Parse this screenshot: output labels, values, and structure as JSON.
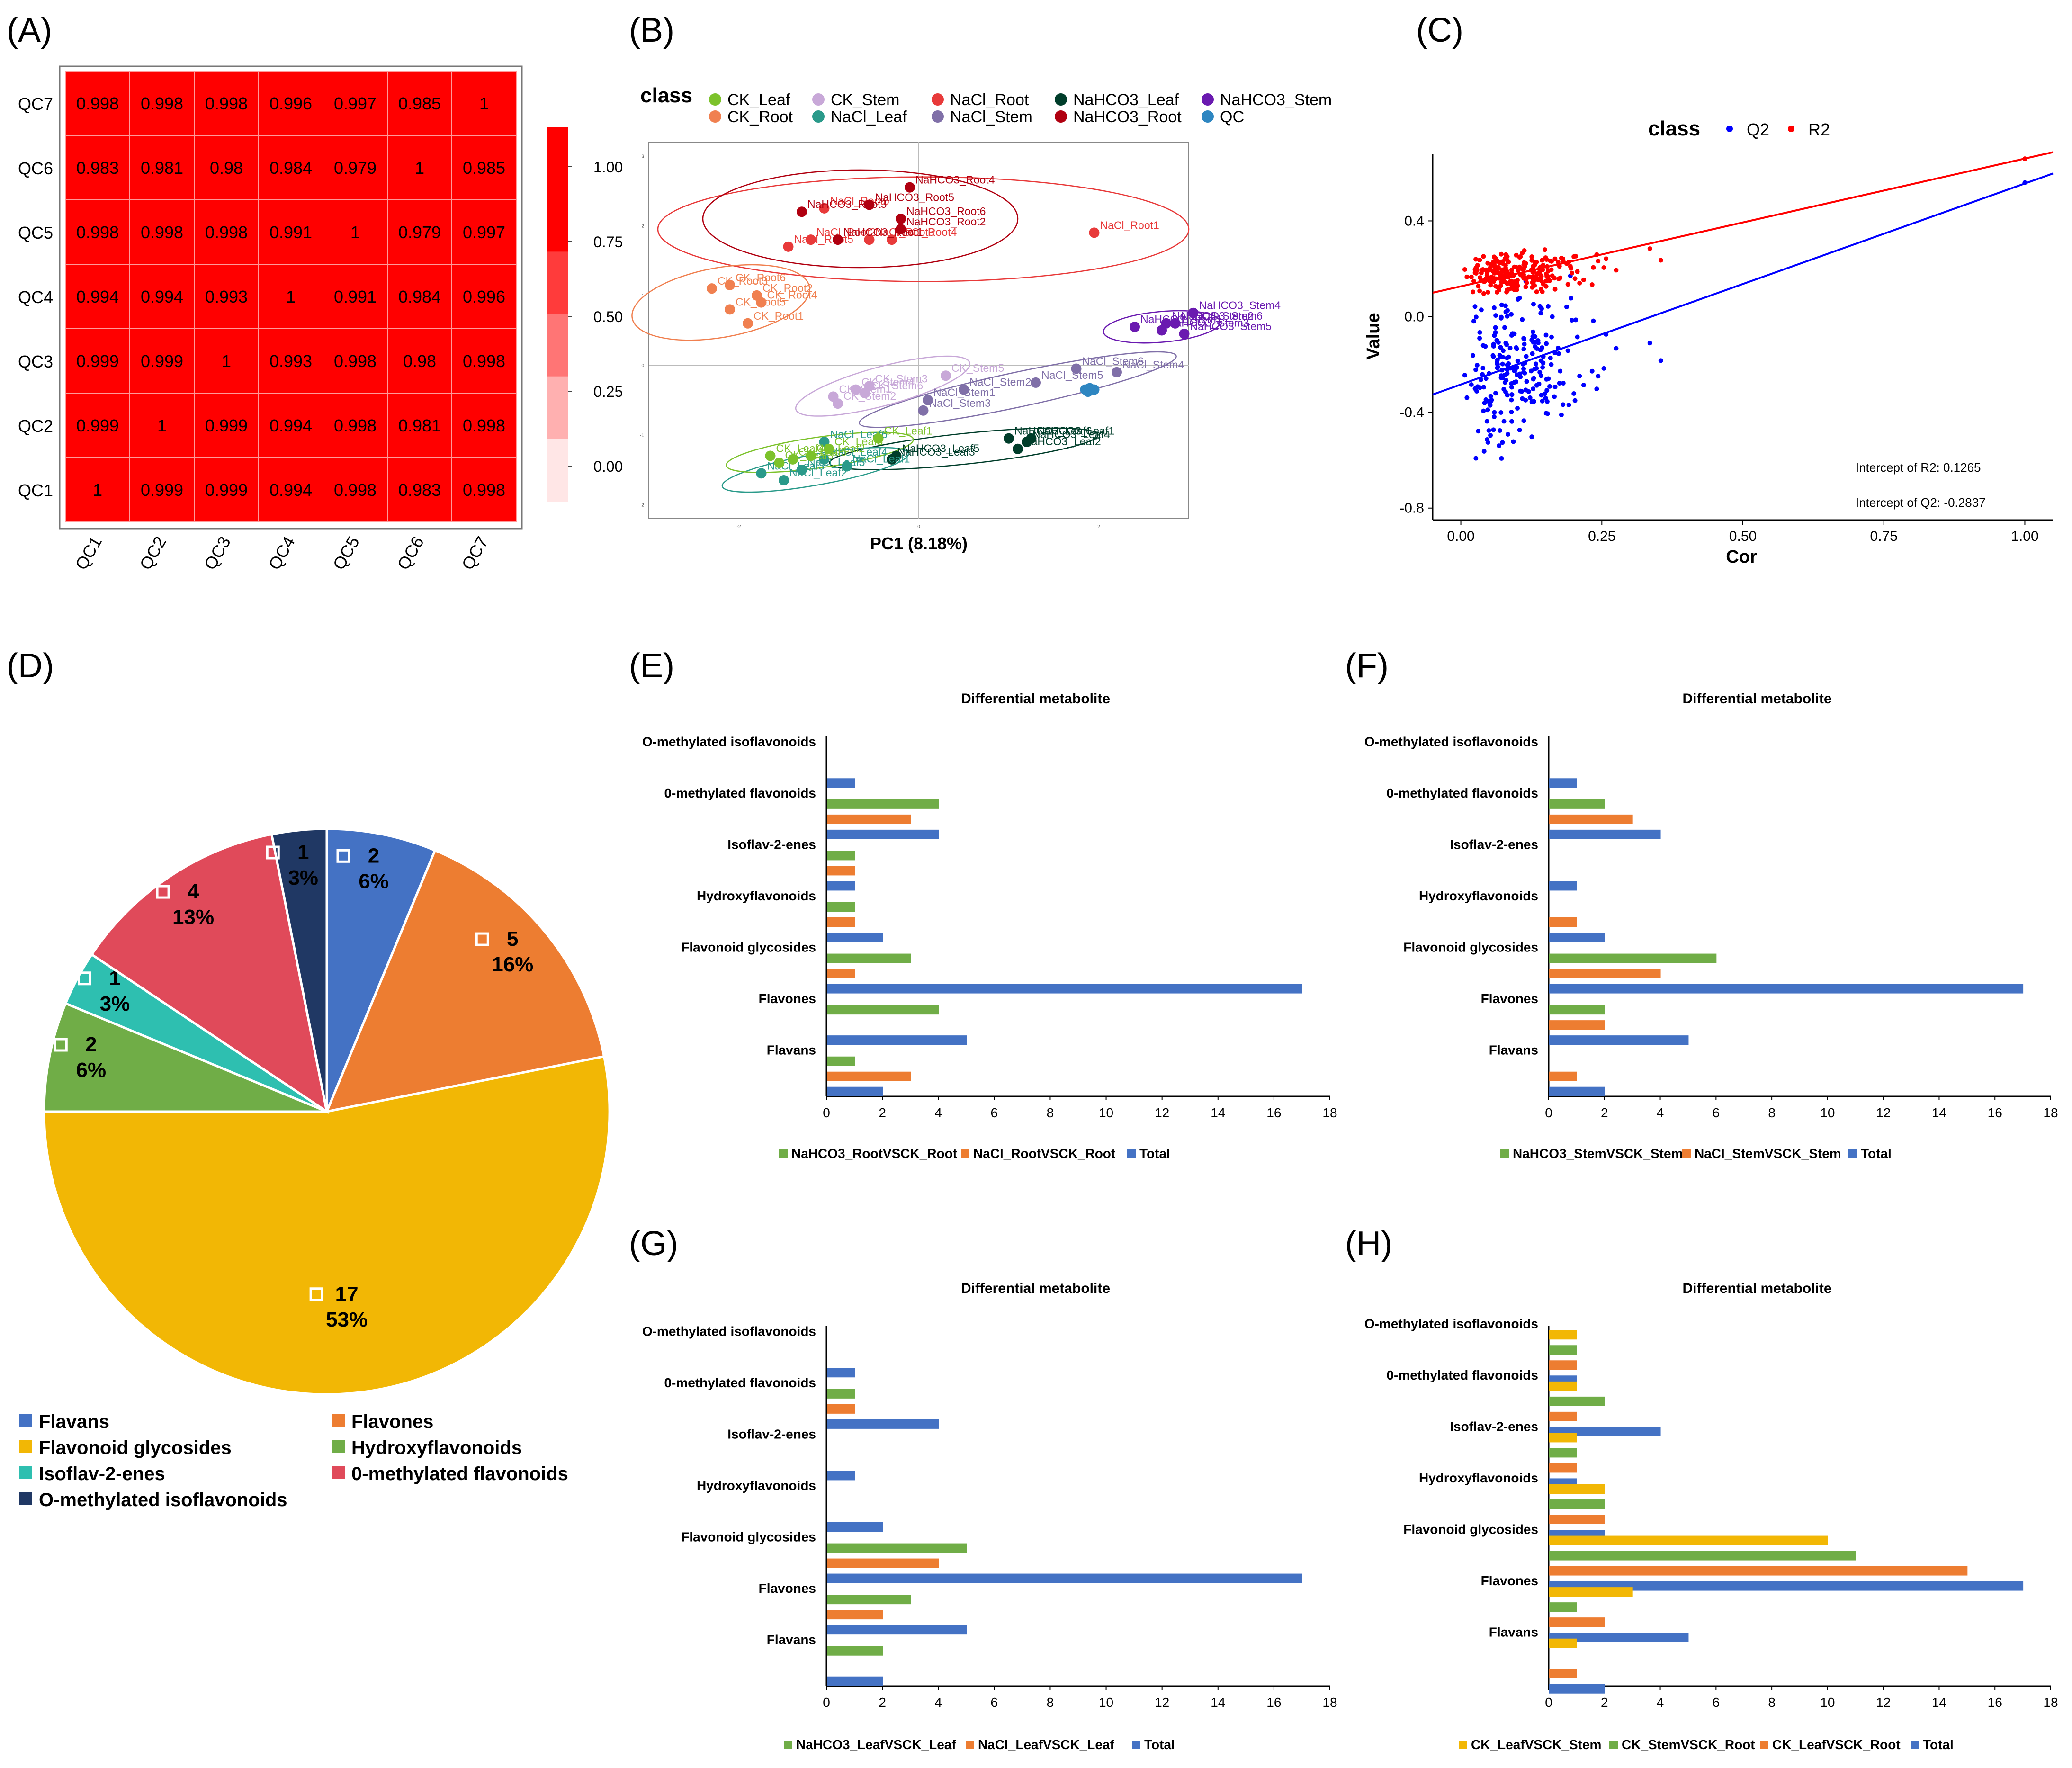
{
  "figure": {
    "title": ""
  },
  "colors": {
    "blue": "#4472c4",
    "orange": "#ed7d31",
    "green": "#70ad47",
    "gold": "#f2b705",
    "teal": "#2ebfb0",
    "red_pie": "#e04a5a",
    "navy": "#203864",
    "heat": "#ff0000",
    "q2": "#0000ff",
    "r2": "#ff0000"
  },
  "chart_data": [
    {
      "id": "A",
      "label": "(A)",
      "type": "heatmap",
      "rows": [
        "QC7",
        "QC6",
        "QC5",
        "QC4",
        "QC3",
        "QC2",
        "QC1"
      ],
      "cols": [
        "QC1",
        "QC2",
        "QC3",
        "QC4",
        "QC5",
        "QC6",
        "QC7"
      ],
      "cells": [
        [
          "0.998",
          "0.998",
          "0.998",
          "0.996",
          "0.997",
          "0.985",
          "1"
        ],
        [
          "0.983",
          "0.981",
          "0.98",
          "0.984",
          "0.979",
          "1",
          "0.985"
        ],
        [
          "0.998",
          "0.998",
          "0.998",
          "0.991",
          "1",
          "0.979",
          "0.997"
        ],
        [
          "0.994",
          "0.994",
          "0.993",
          "1",
          "0.991",
          "0.984",
          "0.996"
        ],
        [
          "0.999",
          "0.999",
          "1",
          "0.993",
          "0.998",
          "0.98",
          "0.998"
        ],
        [
          "0.999",
          "1",
          "0.999",
          "0.994",
          "0.998",
          "0.981",
          "0.998"
        ],
        [
          "1",
          "0.999",
          "0.999",
          "0.994",
          "0.998",
          "0.983",
          "0.998"
        ]
      ],
      "legend_ticks": [
        "1.00",
        "0.75",
        "0.50",
        "0.25",
        "0.00"
      ],
      "legend_colors": [
        "#ff0000",
        "#ff0000",
        "#ff3b3b",
        "#ff7575",
        "#ffb0b0",
        "#ffe6e6"
      ]
    },
    {
      "id": "B",
      "label": "(B)",
      "type": "scatter",
      "legend_title": "class",
      "xlabel": "PC1 (8.18%)",
      "xlim": [
        -3,
        3
      ],
      "ylim": [
        -2.2,
        3.2
      ],
      "groups": [
        {
          "name": "CK_Leaf",
          "color": "#7cc22b"
        },
        {
          "name": "CK_Root",
          "color": "#f08050"
        },
        {
          "name": "CK_Stem",
          "color": "#c8a8d8"
        },
        {
          "name": "NaCl_Leaf",
          "color": "#2a9a8a"
        },
        {
          "name": "NaCl_Root",
          "color": "#e83a3a"
        },
        {
          "name": "NaCl_Stem",
          "color": "#8070a8"
        },
        {
          "name": "NaHCO3_Leaf",
          "color": "#003d2a"
        },
        {
          "name": "NaHCO3_Root",
          "color": "#b00010"
        },
        {
          "name": "NaHCO3_Stem",
          "color": "#6a1ab0"
        },
        {
          "name": "QC",
          "color": "#2e86c1"
        }
      ],
      "points": [
        {
          "g": 4,
          "label": "NaCl_Root1",
          "x": 1.95,
          "y": 1.9
        },
        {
          "g": 4,
          "label": "NaCl_Root2",
          "x": -1.2,
          "y": 1.8
        },
        {
          "g": 4,
          "label": "NaCl_Root3",
          "x": -0.55,
          "y": 1.8
        },
        {
          "g": 4,
          "label": "NaCl_Root4",
          "x": -0.3,
          "y": 1.8
        },
        {
          "g": 4,
          "label": "NaCl_Root5",
          "x": -1.45,
          "y": 1.7
        },
        {
          "g": 4,
          "label": "NaCl_Root6",
          "x": -1.05,
          "y": 2.25
        },
        {
          "g": 7,
          "label": "NaHCO3_Root1",
          "x": -0.9,
          "y": 1.8
        },
        {
          "g": 7,
          "label": "NaHCO3_Root2",
          "x": -0.2,
          "y": 1.95
        },
        {
          "g": 7,
          "label": "NaHCO3_Root3",
          "x": -1.3,
          "y": 2.2
        },
        {
          "g": 7,
          "label": "NaHCO3_Root4",
          "x": -0.1,
          "y": 2.55
        },
        {
          "g": 7,
          "label": "NaHCO3_Root5",
          "x": -0.55,
          "y": 2.3
        },
        {
          "g": 7,
          "label": "NaHCO3_Root6",
          "x": -0.2,
          "y": 2.1
        },
        {
          "g": 1,
          "label": "CK_Root1",
          "x": -1.9,
          "y": 0.6
        },
        {
          "g": 1,
          "label": "CK_Root2",
          "x": -1.8,
          "y": 1.0
        },
        {
          "g": 1,
          "label": "CK_Root3",
          "x": -2.3,
          "y": 1.1
        },
        {
          "g": 1,
          "label": "CK_Root4",
          "x": -1.75,
          "y": 0.9
        },
        {
          "g": 1,
          "label": "CK_Root5",
          "x": -2.1,
          "y": 0.8
        },
        {
          "g": 1,
          "label": "CK_Root6",
          "x": -2.1,
          "y": 1.15
        },
        {
          "g": 8,
          "label": "NaHCO3_Stem1",
          "x": 2.4,
          "y": 0.55
        },
        {
          "g": 8,
          "label": "NaHCO3_Stem2",
          "x": 2.75,
          "y": 0.6
        },
        {
          "g": 8,
          "label": "NaHCO3_Stem3",
          "x": 2.7,
          "y": 0.5
        },
        {
          "g": 8,
          "label": "NaHCO3_Stem4",
          "x": 3.05,
          "y": 0.75
        },
        {
          "g": 8,
          "label": "NaHCO3_Stem5",
          "x": 2.95,
          "y": 0.45
        },
        {
          "g": 8,
          "label": "NaHCO3_Stem6",
          "x": 2.85,
          "y": 0.6
        },
        {
          "g": 5,
          "label": "NaCl_Stem1",
          "x": 0.1,
          "y": -0.5
        },
        {
          "g": 5,
          "label": "NaCl_Stem2",
          "x": 0.5,
          "y": -0.35
        },
        {
          "g": 5,
          "label": "NaCl_Stem3",
          "x": 0.05,
          "y": -0.65
        },
        {
          "g": 5,
          "label": "NaCl_Stem4",
          "x": 2.2,
          "y": -0.1
        },
        {
          "g": 5,
          "label": "NaCl_Stem5",
          "x": 1.3,
          "y": -0.25
        },
        {
          "g": 5,
          "label": "NaCl_Stem6",
          "x": 1.75,
          "y": -0.05
        },
        {
          "g": 2,
          "label": "CK_Stem1",
          "x": -0.95,
          "y": -0.45
        },
        {
          "g": 2,
          "label": "CK_Stem2",
          "x": -0.9,
          "y": -0.55
        },
        {
          "g": 2,
          "label": "CK_Stem3",
          "x": -0.55,
          "y": -0.3
        },
        {
          "g": 2,
          "label": "CK_Stem4",
          "x": -0.7,
          "y": -0.35
        },
        {
          "g": 2,
          "label": "CK_Stem5",
          "x": 0.3,
          "y": -0.15
        },
        {
          "g": 2,
          "label": "CK_Stem6",
          "x": -0.6,
          "y": -0.4
        },
        {
          "g": 6,
          "label": "NaHCO3_Leaf1",
          "x": 1.25,
          "y": -1.05
        },
        {
          "g": 6,
          "label": "NaHCO3_Leaf2",
          "x": 1.1,
          "y": -1.2
        },
        {
          "g": 6,
          "label": "NaHCO3_Leaf3",
          "x": -0.3,
          "y": -1.35
        },
        {
          "g": 6,
          "label": "NaHCO3_Leaf4",
          "x": 1.2,
          "y": -1.1
        },
        {
          "g": 6,
          "label": "NaHCO3_Leaf5",
          "x": -0.25,
          "y": -1.3
        },
        {
          "g": 6,
          "label": "NaHCO3_Leaf6",
          "x": 1.0,
          "y": -1.05
        },
        {
          "g": 3,
          "label": "NaCl_Leaf1",
          "x": -0.8,
          "y": -1.45
        },
        {
          "g": 3,
          "label": "NaCl_Leaf2",
          "x": -1.5,
          "y": -1.65
        },
        {
          "g": 3,
          "label": "NaCl_Leaf3",
          "x": -1.75,
          "y": -1.55
        },
        {
          "g": 3,
          "label": "NaCl_Leaf4",
          "x": -1.05,
          "y": -1.35
        },
        {
          "g": 3,
          "label": "NaCl_Leaf5",
          "x": -1.3,
          "y": -1.5
        },
        {
          "g": 3,
          "label": "NaCl_Leaf6",
          "x": -1.05,
          "y": -1.1
        },
        {
          "g": 0,
          "label": "CK_Leaf1",
          "x": -0.45,
          "y": -1.05
        },
        {
          "g": 0,
          "label": "CK_Leaf2",
          "x": -1.2,
          "y": -1.3
        },
        {
          "g": 0,
          "label": "CK_Leaf3",
          "x": -1.55,
          "y": -1.4
        },
        {
          "g": 0,
          "label": "CK_Leaf4",
          "x": -1.65,
          "y": -1.3
        },
        {
          "g": 0,
          "label": "CK_Leaf5",
          "x": -1.4,
          "y": -1.35
        },
        {
          "g": 0,
          "label": "CK_Leaf6",
          "x": -1.0,
          "y": -1.2
        },
        {
          "g": 9,
          "label": "",
          "x": 1.85,
          "y": -0.35
        },
        {
          "g": 9,
          "label": "",
          "x": 1.9,
          "y": -0.33
        },
        {
          "g": 9,
          "label": "",
          "x": 1.95,
          "y": -0.35
        },
        {
          "g": 9,
          "label": "",
          "x": 1.88,
          "y": -0.38
        }
      ],
      "ellipses": [
        {
          "g": 4,
          "cx": 0.05,
          "cy": 1.95,
          "rx": 2.95,
          "ry": 0.75,
          "angle": 0
        },
        {
          "g": 7,
          "cx": -0.65,
          "cy": 2.1,
          "rx": 1.75,
          "ry": 0.7,
          "angle": 0
        },
        {
          "g": 1,
          "cx": -2.2,
          "cy": 0.9,
          "rx": 1.0,
          "ry": 0.5,
          "angle": -10
        },
        {
          "g": 8,
          "cx": 2.7,
          "cy": 0.55,
          "rx": 0.65,
          "ry": 0.22,
          "angle": -5
        },
        {
          "g": 5,
          "cx": 1.1,
          "cy": -0.35,
          "rx": 1.8,
          "ry": 0.25,
          "angle": -12
        },
        {
          "g": 2,
          "cx": -0.4,
          "cy": -0.3,
          "rx": 1.0,
          "ry": 0.28,
          "angle": -15
        },
        {
          "g": 6,
          "cx": 0.5,
          "cy": -1.2,
          "rx": 1.5,
          "ry": 0.22,
          "angle": -6
        },
        {
          "g": 3,
          "cx": -1.15,
          "cy": -1.5,
          "rx": 1.05,
          "ry": 0.22,
          "angle": -10
        },
        {
          "g": 0,
          "cx": -1.1,
          "cy": -1.25,
          "rx": 1.05,
          "ry": 0.22,
          "angle": -8
        }
      ],
      "ytick_labels": [
        "3",
        "2",
        "1",
        "0",
        "-1",
        "-2"
      ],
      "xtick_labels": [
        "-2",
        "0",
        "2"
      ]
    },
    {
      "id": "C",
      "label": "(C)",
      "type": "scatter",
      "legend_title": "class",
      "series_names": [
        "Q2",
        "R2"
      ],
      "xlabel": "Cor",
      "ylabel": "Value",
      "xlim": [
        -0.05,
        1.05
      ],
      "ylim": [
        -0.85,
        0.68
      ],
      "xticks": [
        "0.00",
        "0.25",
        "0.50",
        "0.75",
        "1.00"
      ],
      "xtick_values": [
        0,
        0.25,
        0.5,
        0.75,
        1.0
      ],
      "yticks": [
        "0.4",
        "0.0",
        "-0.4",
        "-0.8"
      ],
      "ytick_values": [
        0.4,
        0.0,
        -0.4,
        -0.8
      ],
      "r2_line": {
        "intercept": 0.1265,
        "slope": 0.534
      },
      "q2_line": {
        "intercept": -0.2837,
        "slope": 0.84
      },
      "annotations": [
        "Intercept of R2: 0.1265",
        "Intercept of Q2: -0.2837"
      ],
      "n_points": 240
    },
    {
      "id": "D",
      "label": "(D)",
      "type": "pie",
      "slices": [
        {
          "name": "Flavans",
          "value": 2,
          "pct": "6%",
          "color": "#4472c4"
        },
        {
          "name": "Flavones",
          "value": 5,
          "pct": "16%",
          "color": "#ed7d31"
        },
        {
          "name": "Flavonoid glycosides",
          "value": 17,
          "pct": "53%",
          "color": "#f2b705"
        },
        {
          "name": "Hydroxyflavonoids",
          "value": 2,
          "pct": "6%",
          "color": "#70ad47"
        },
        {
          "name": "Isoflav-2-enes",
          "value": 1,
          "pct": "3%",
          "color": "#2ebfb0"
        },
        {
          "name": "0-methylated flavonoids",
          "value": 4,
          "pct": "13%",
          "color": "#e04a5a"
        },
        {
          "name": "O-methylated isoflavonoids",
          "value": 1,
          "pct": "3%",
          "color": "#203864"
        }
      ]
    },
    {
      "id": "E",
      "label": "(E)",
      "type": "bar",
      "title": "Differential metabolite",
      "categories": [
        "O-methylated isoflavonoids",
        "0-methylated flavonoids",
        "Isoflav-2-enes",
        "Hydroxyflavonoids",
        "Flavonoid glycosides",
        "Flavones",
        "Flavans"
      ],
      "xlim": [
        0,
        18
      ],
      "xticks": [
        "0",
        "2",
        "4",
        "6",
        "8",
        "10",
        "12",
        "14",
        "16",
        "18"
      ],
      "series": [
        {
          "name": "NaHCO3_RootVSCK_Root",
          "color": "#70ad47",
          "values": [
            0,
            4,
            1,
            1,
            3,
            4,
            1
          ]
        },
        {
          "name": "NaCl_RootVSCK_Root",
          "color": "#ed7d31",
          "values": [
            0,
            3,
            1,
            1,
            1,
            0,
            3
          ]
        },
        {
          "name": "Total",
          "color": "#4472c4",
          "values": [
            1,
            4,
            1,
            2,
            17,
            5,
            2
          ]
        }
      ]
    },
    {
      "id": "F",
      "label": "(F)",
      "type": "bar",
      "title": "Differential metabolite",
      "categories": [
        "O-methylated isoflavonoids",
        "0-methylated flavonoids",
        "Isoflav-2-enes",
        "Hydroxyflavonoids",
        "Flavonoid glycosides",
        "Flavones",
        "Flavans"
      ],
      "xlim": [
        0,
        18
      ],
      "xticks": [
        "0",
        "2",
        "4",
        "6",
        "8",
        "10",
        "12",
        "14",
        "16",
        "18"
      ],
      "series": [
        {
          "name": "NaHCO3_StemVSCK_Stem",
          "color": "#70ad47",
          "values": [
            0,
            2,
            0,
            0,
            6,
            2,
            0
          ]
        },
        {
          "name": "NaCl_StemVSCK_Stem",
          "color": "#ed7d31",
          "values": [
            0,
            3,
            0,
            1,
            4,
            2,
            1
          ]
        },
        {
          "name": "Total",
          "color": "#4472c4",
          "values": [
            1,
            4,
            1,
            2,
            17,
            5,
            2
          ]
        }
      ]
    },
    {
      "id": "G",
      "label": "(G)",
      "type": "bar",
      "title": "Differential metabolite",
      "categories": [
        "O-methylated isoflavonoids",
        "0-methylated flavonoids",
        "Isoflav-2-enes",
        "Hydroxyflavonoids",
        "Flavonoid glycosides",
        "Flavones",
        "Flavans"
      ],
      "xlim": [
        0,
        18
      ],
      "xticks": [
        "0",
        "2",
        "4",
        "6",
        "8",
        "10",
        "12",
        "14",
        "16",
        "18"
      ],
      "series": [
        {
          "name": "NaHCO3_LeafVSCK_Leaf",
          "color": "#70ad47",
          "values": [
            0,
            1,
            0,
            0,
            5,
            3,
            2
          ]
        },
        {
          "name": "NaCl_LeafVSCK_Leaf",
          "color": "#ed7d31",
          "values": [
            0,
            1,
            0,
            0,
            4,
            2,
            0
          ]
        },
        {
          "name": "Total",
          "color": "#4472c4",
          "values": [
            1,
            4,
            1,
            2,
            17,
            5,
            2
          ]
        }
      ]
    },
    {
      "id": "H",
      "label": "(H)",
      "type": "bar",
      "title": "Differential metabolite",
      "categories": [
        "O-methylated isoflavonoids",
        "0-methylated flavonoids",
        "Isoflav-2-enes",
        "Hydroxyflavonoids",
        "Flavonoid glycosides",
        "Flavones",
        "Flavans"
      ],
      "xlim": [
        0,
        18
      ],
      "xticks": [
        "0",
        "2",
        "4",
        "6",
        "8",
        "10",
        "12",
        "14",
        "16",
        "18"
      ],
      "series": [
        {
          "name": "CK_LeafVSCK_Stem",
          "color": "#f2b705",
          "values": [
            1,
            1,
            1,
            2,
            10,
            3,
            1
          ]
        },
        {
          "name": "CK_StemVSCK_Root",
          "color": "#70ad47",
          "values": [
            1,
            2,
            1,
            2,
            11,
            1,
            0
          ]
        },
        {
          "name": "CK_LeafVSCK_Root",
          "color": "#ed7d31",
          "values": [
            1,
            1,
            1,
            2,
            15,
            2,
            1
          ]
        },
        {
          "name": "Total",
          "color": "#4472c4",
          "values": [
            1,
            4,
            1,
            2,
            17,
            5,
            2
          ]
        }
      ]
    }
  ]
}
